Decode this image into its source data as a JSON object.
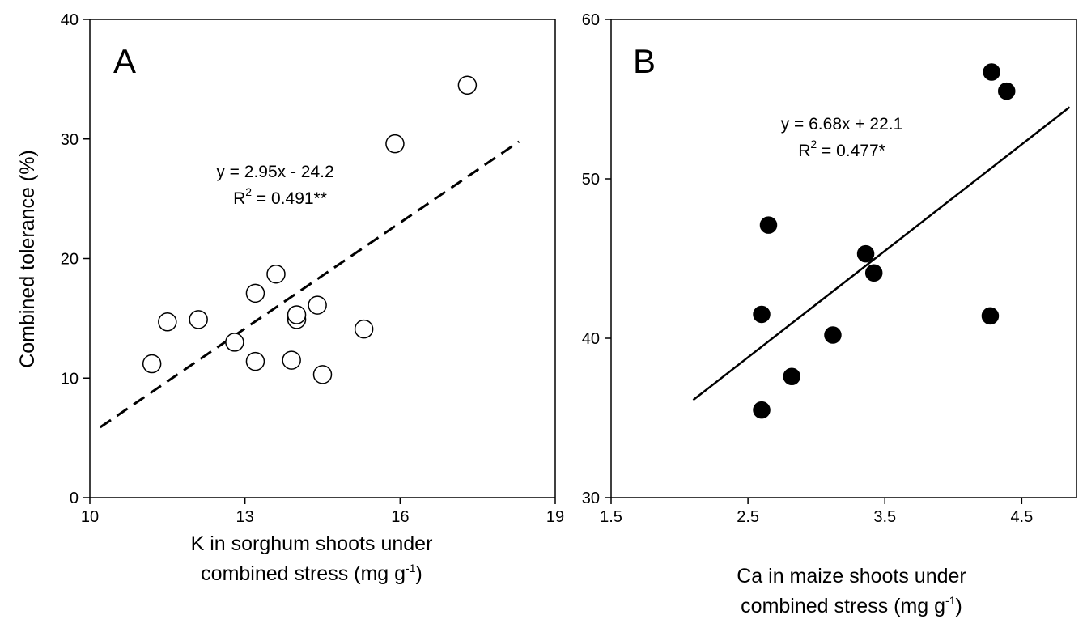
{
  "chart_data": [
    {
      "type": "scatter",
      "panel_label": "A",
      "xlabel": {
        "main": "K in  sorghum shoots under",
        "line2": "combined stress (mg g",
        "sup": "-1",
        "close": ")"
      },
      "ylabel": "Combined tolerance (%)",
      "xlim": [
        10,
        19
      ],
      "ylim": [
        0,
        40
      ],
      "x_ticks": [
        10,
        13,
        16,
        19
      ],
      "y_ticks": [
        0,
        10,
        20,
        30,
        40
      ],
      "marker": "open-circle",
      "points": [
        {
          "x": 11.2,
          "y": 11.2
        },
        {
          "x": 11.5,
          "y": 14.7
        },
        {
          "x": 12.1,
          "y": 14.9
        },
        {
          "x": 12.8,
          "y": 13.0
        },
        {
          "x": 13.2,
          "y": 17.1
        },
        {
          "x": 13.2,
          "y": 11.4
        },
        {
          "x": 13.6,
          "y": 18.7
        },
        {
          "x": 13.9,
          "y": 11.5
        },
        {
          "x": 14.0,
          "y": 14.9
        },
        {
          "x": 14.0,
          "y": 15.3
        },
        {
          "x": 14.4,
          "y": 16.1
        },
        {
          "x": 14.5,
          "y": 10.3
        },
        {
          "x": 15.3,
          "y": 14.1
        },
        {
          "x": 15.9,
          "y": 29.6
        },
        {
          "x": 17.3,
          "y": 34.5
        }
      ],
      "fit": {
        "slope": 2.95,
        "intercept": -24.2,
        "x_range": [
          10.2,
          18.3
        ],
        "style": "dashed"
      },
      "equation": "y = 2.95x - 24.2",
      "r2": {
        "prefix": "R",
        "sup": "2",
        "rest": " = 0.491**"
      }
    },
    {
      "type": "scatter",
      "panel_label": "B",
      "xlabel": {
        "main": "Ca in maize shoots under",
        "line2": "combined stress (mg g",
        "sup": "-1",
        "close": ")"
      },
      "ylabel": "",
      "xlim": [
        1.5,
        4.9
      ],
      "ylim": [
        30,
        60
      ],
      "x_ticks": [
        1.5,
        2.5,
        3.5,
        4.5
      ],
      "y_ticks": [
        30,
        40,
        50,
        60
      ],
      "marker": "filled-circle",
      "points": [
        {
          "x": 2.6,
          "y": 35.5
        },
        {
          "x": 2.6,
          "y": 41.5
        },
        {
          "x": 2.65,
          "y": 47.1
        },
        {
          "x": 2.82,
          "y": 37.6
        },
        {
          "x": 3.12,
          "y": 40.2
        },
        {
          "x": 3.36,
          "y": 45.3
        },
        {
          "x": 3.42,
          "y": 44.1
        },
        {
          "x": 4.27,
          "y": 41.4
        },
        {
          "x": 4.28,
          "y": 56.7
        },
        {
          "x": 4.39,
          "y": 55.5
        }
      ],
      "fit": {
        "slope": 6.68,
        "intercept": 22.1,
        "x_range": [
          2.1,
          4.85
        ],
        "style": "solid"
      },
      "equation": "y = 6.68x + 22.1",
      "r2": {
        "prefix": "R",
        "sup": "2",
        "rest": " = 0.477*"
      }
    }
  ]
}
